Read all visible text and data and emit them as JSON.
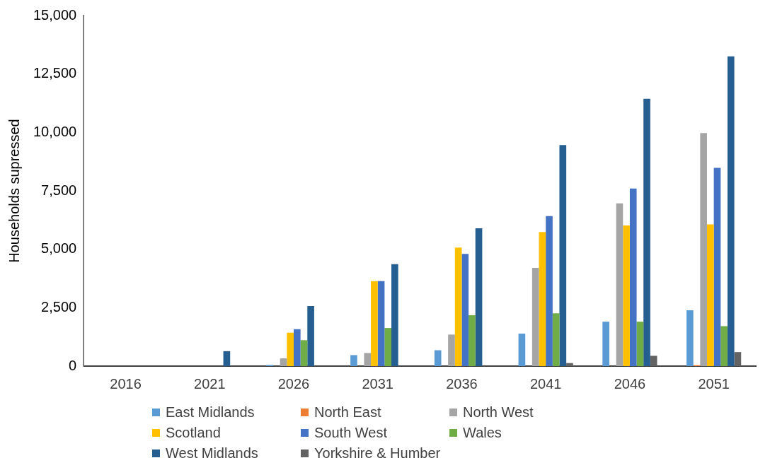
{
  "chart_data": {
    "type": "bar",
    "ylabel": "Households supressed",
    "categories": [
      "2016",
      "2021",
      "2026",
      "2031",
      "2036",
      "2041",
      "2046",
      "2051"
    ],
    "series": [
      {
        "name": "East Midlands",
        "color": "#5b9bd5",
        "values": [
          0,
          0,
          50,
          470,
          680,
          1390,
          1900,
          2390
        ]
      },
      {
        "name": "North East",
        "color": "#ed7d31",
        "values": [
          0,
          0,
          0,
          0,
          0,
          0,
          0,
          40
        ]
      },
      {
        "name": "North West",
        "color": "#a5a5a5",
        "values": [
          0,
          0,
          330,
          560,
          1350,
          4200,
          6960,
          9970
        ]
      },
      {
        "name": "Scotland",
        "color": "#ffc000",
        "values": [
          0,
          0,
          1430,
          3640,
          5070,
          5740,
          6020,
          6060
        ]
      },
      {
        "name": "South West",
        "color": "#4472c4",
        "values": [
          0,
          0,
          1580,
          3640,
          4800,
          6420,
          7600,
          8480
        ]
      },
      {
        "name": "Wales",
        "color": "#70ad47",
        "values": [
          0,
          0,
          1110,
          1630,
          2180,
          2260,
          1900,
          1710
        ]
      },
      {
        "name": "West Midlands",
        "color": "#255e91",
        "values": [
          0,
          640,
          2570,
          4360,
          5900,
          9460,
          11440,
          13250
        ]
      },
      {
        "name": "Yorkshire & Humber",
        "color": "#636363",
        "values": [
          0,
          0,
          0,
          0,
          0,
          130,
          440,
          600
        ]
      }
    ],
    "ylim": [
      0,
      15000
    ],
    "yticks": [
      {
        "value": 0,
        "label": "0"
      },
      {
        "value": 2500,
        "label": "2,500"
      },
      {
        "value": 5000,
        "label": "5,000"
      },
      {
        "value": 7500,
        "label": "7,500"
      },
      {
        "value": 10000,
        "label": "10,000"
      },
      {
        "value": 12500,
        "label": "12,500"
      },
      {
        "value": 15000,
        "label": "15,000"
      }
    ],
    "grid": false,
    "legend": "bottom"
  }
}
